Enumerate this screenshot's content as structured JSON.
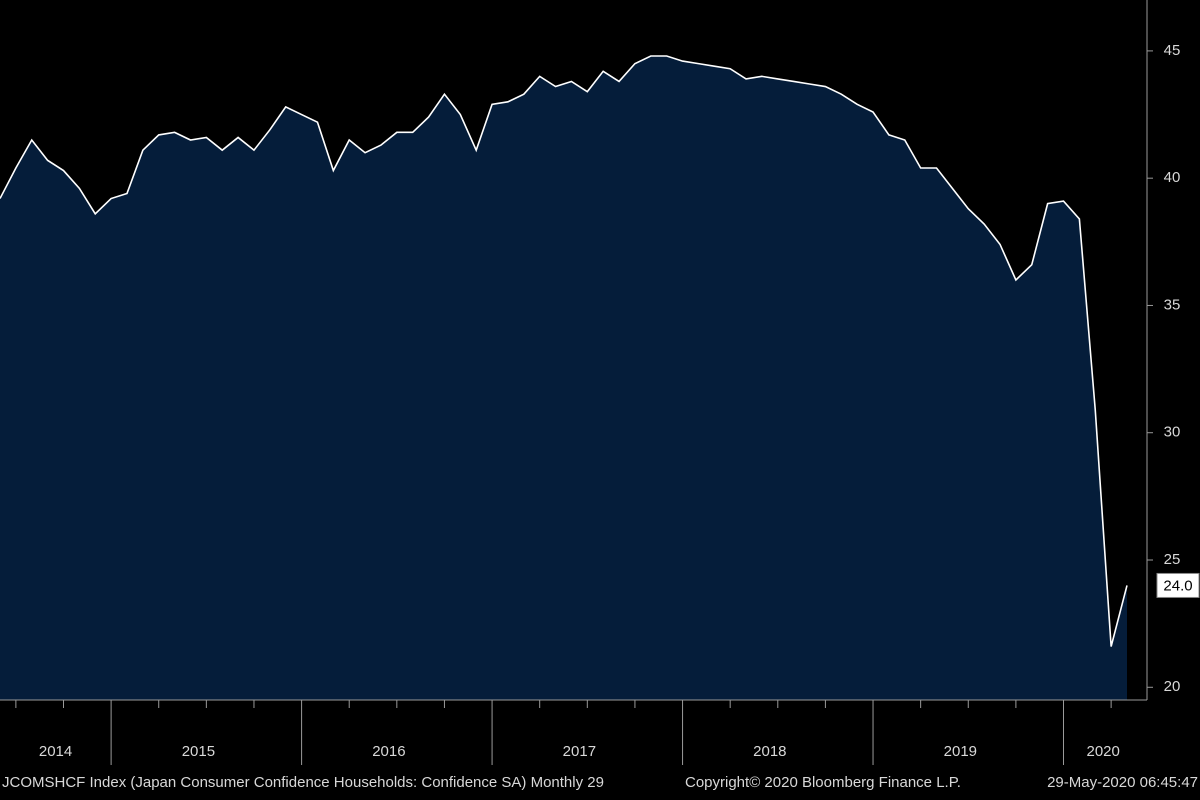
{
  "chart_data": {
    "type": "area",
    "categories": [
      null,
      null,
      null,
      "2014",
      null,
      null,
      null,
      null,
      null,
      null,
      null,
      null,
      "2015",
      null,
      null,
      null,
      null,
      null,
      null,
      null,
      null,
      null,
      null,
      null,
      "2016",
      null,
      null,
      null,
      null,
      null,
      null,
      null,
      null,
      null,
      null,
      null,
      "2017",
      null,
      null,
      null,
      null,
      null,
      null,
      null,
      null,
      null,
      null,
      null,
      "2018",
      null,
      null,
      null,
      null,
      null,
      null,
      null,
      null,
      null,
      null,
      null,
      "2019",
      null,
      null,
      null,
      null,
      null,
      null,
      null,
      null,
      "2020",
      null,
      null
    ],
    "series": [
      {
        "color": "#ffffff",
        "fill": "#051d3a",
        "values": [
          39.2,
          40.4,
          41.5,
          40.7,
          40.3,
          39.6,
          38.6,
          39.2,
          39.4,
          41.1,
          41.7,
          41.8,
          41.5,
          41.6,
          41.1,
          41.6,
          41.1,
          41.9,
          42.8,
          42.5,
          42.2,
          40.3,
          41.5,
          41.0,
          41.3,
          41.8,
          41.8,
          42.4,
          43.3,
          42.5,
          41.1,
          42.9,
          43.0,
          43.3,
          44.0,
          43.6,
          43.8,
          43.4,
          44.2,
          43.8,
          44.5,
          44.8,
          44.8,
          44.6,
          44.5,
          44.4,
          44.3,
          43.9,
          44.0,
          43.9,
          43.8,
          43.7,
          43.6,
          43.3,
          42.9,
          42.6,
          41.7,
          41.5,
          40.4,
          40.4,
          39.6,
          38.8,
          38.2,
          37.4,
          36.0,
          36.6,
          39.0,
          39.1,
          38.4,
          30.9,
          21.6,
          24.0
        ],
        "value_labels": [
          null,
          null,
          null,
          null,
          null,
          null,
          null,
          null,
          null,
          null,
          null,
          null,
          null,
          null,
          null,
          null,
          null,
          null,
          null,
          null,
          null,
          null,
          null,
          null,
          null,
          null,
          null,
          null,
          null,
          null,
          null,
          null,
          null,
          null,
          null,
          null,
          null,
          null,
          null,
          null,
          null,
          null,
          null,
          null,
          null,
          null,
          null,
          null,
          null,
          null,
          null,
          null,
          null,
          null,
          null,
          null,
          null,
          null,
          null,
          null,
          null,
          null,
          null,
          null,
          null,
          null,
          null,
          null,
          null,
          null,
          null,
          "24.0"
        ]
      }
    ],
    "ylim": [
      19.5,
      47
    ],
    "yticks": [
      20,
      25,
      30,
      35,
      40,
      45
    ],
    "y_axis_side": "right",
    "annotations": [
      "JCOMSHCF Index (Japan Consumer Confidence Households: Confidence SA)  Monthly 29",
      "Copyright© 2020 Bloomberg Finance L.P.",
      "29-May-2020 06:45:47"
    ]
  }
}
